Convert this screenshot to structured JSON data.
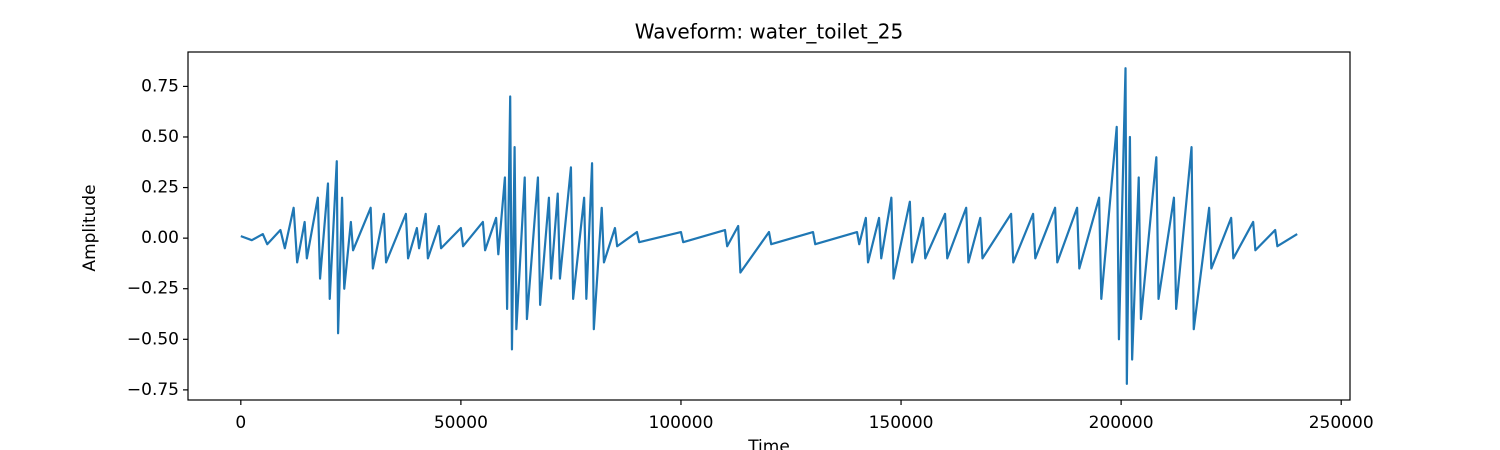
{
  "chart_data": {
    "type": "line",
    "title": "Waveform: water_toilet_25",
    "xlabel": "Time",
    "ylabel": "Amplitude",
    "xlim": [
      -12000,
      252000
    ],
    "ylim": [
      -0.8,
      0.92
    ],
    "xticks": [
      0,
      50000,
      100000,
      150000,
      200000,
      250000
    ],
    "yticks": [
      {
        "value": -0.75,
        "label": "−0.75"
      },
      {
        "value": -0.5,
        "label": "−0.50"
      },
      {
        "value": -0.25,
        "label": "−0.25"
      },
      {
        "value": 0,
        "label": "0.00"
      },
      {
        "value": 0.25,
        "label": "0.25"
      },
      {
        "value": 0.5,
        "label": "0.50"
      },
      {
        "value": 0.75,
        "label": "0.75"
      }
    ],
    "grid": false,
    "series": [
      {
        "color": "#1f77b4",
        "x": [
          0,
          2500,
          5000,
          6000,
          9000,
          10000,
          12000,
          12800,
          14500,
          15000,
          17500,
          18000,
          19800,
          20200,
          21800,
          22100,
          23000,
          23500,
          25000,
          25500,
          29500,
          30000,
          32500,
          33000,
          37500,
          38000,
          40000,
          40500,
          42000,
          42500,
          45000,
          45500,
          50000,
          50500,
          55000,
          55500,
          58000,
          58500,
          60000,
          60500,
          61200,
          61600,
          62200,
          62600,
          64500,
          65000,
          67500,
          68000,
          70000,
          70500,
          72000,
          72500,
          75000,
          75500,
          78000,
          78500,
          79800,
          80200,
          82000,
          82500,
          85000,
          85500,
          90000,
          90500,
          100000,
          100500,
          110000,
          110500,
          113000,
          113500,
          120000,
          120500,
          130000,
          130500,
          140000,
          140500,
          142000,
          142500,
          145000,
          145500,
          147800,
          148300,
          152000,
          152500,
          155000,
          155500,
          160000,
          160500,
          164800,
          165300,
          168000,
          168500,
          175000,
          175500,
          180000,
          180500,
          185000,
          185500,
          190000,
          190500,
          195000,
          195500,
          199000,
          199500,
          201000,
          201300,
          202000,
          202500,
          204000,
          204500,
          208000,
          208500,
          212000,
          212500,
          216000,
          216500,
          220000,
          220500,
          225000,
          225500,
          230000,
          230500,
          235000,
          235500,
          240000
        ],
        "values": [
          0.01,
          -0.01,
          0.02,
          -0.03,
          0.04,
          -0.05,
          0.15,
          -0.12,
          0.08,
          -0.1,
          0.2,
          -0.2,
          0.27,
          -0.3,
          0.38,
          -0.47,
          0.2,
          -0.25,
          0.08,
          -0.06,
          0.15,
          -0.15,
          0.12,
          -0.12,
          0.12,
          -0.1,
          0.05,
          -0.05,
          0.12,
          -0.1,
          0.06,
          -0.05,
          0.05,
          -0.04,
          0.08,
          -0.06,
          0.1,
          -0.08,
          0.3,
          -0.35,
          0.7,
          -0.55,
          0.45,
          -0.45,
          0.3,
          -0.4,
          0.3,
          -0.33,
          0.2,
          -0.2,
          0.22,
          -0.2,
          0.35,
          -0.3,
          0.2,
          -0.3,
          0.37,
          -0.45,
          0.15,
          -0.12,
          0.05,
          -0.04,
          0.03,
          -0.02,
          0.03,
          -0.02,
          0.04,
          -0.04,
          0.06,
          -0.17,
          0.03,
          -0.03,
          0.03,
          -0.03,
          0.03,
          -0.03,
          0.1,
          -0.12,
          0.1,
          -0.1,
          0.2,
          -0.2,
          0.18,
          -0.12,
          0.1,
          -0.1,
          0.12,
          -0.1,
          0.15,
          -0.12,
          0.1,
          -0.1,
          0.12,
          -0.12,
          0.12,
          -0.1,
          0.15,
          -0.12,
          0.15,
          -0.15,
          0.2,
          -0.3,
          0.55,
          -0.5,
          0.84,
          -0.72,
          0.5,
          -0.6,
          0.3,
          -0.4,
          0.4,
          -0.3,
          0.2,
          -0.35,
          0.45,
          -0.45,
          0.15,
          -0.15,
          0.1,
          -0.1,
          0.08,
          -0.06,
          0.04,
          -0.04,
          0.02
        ]
      }
    ]
  }
}
